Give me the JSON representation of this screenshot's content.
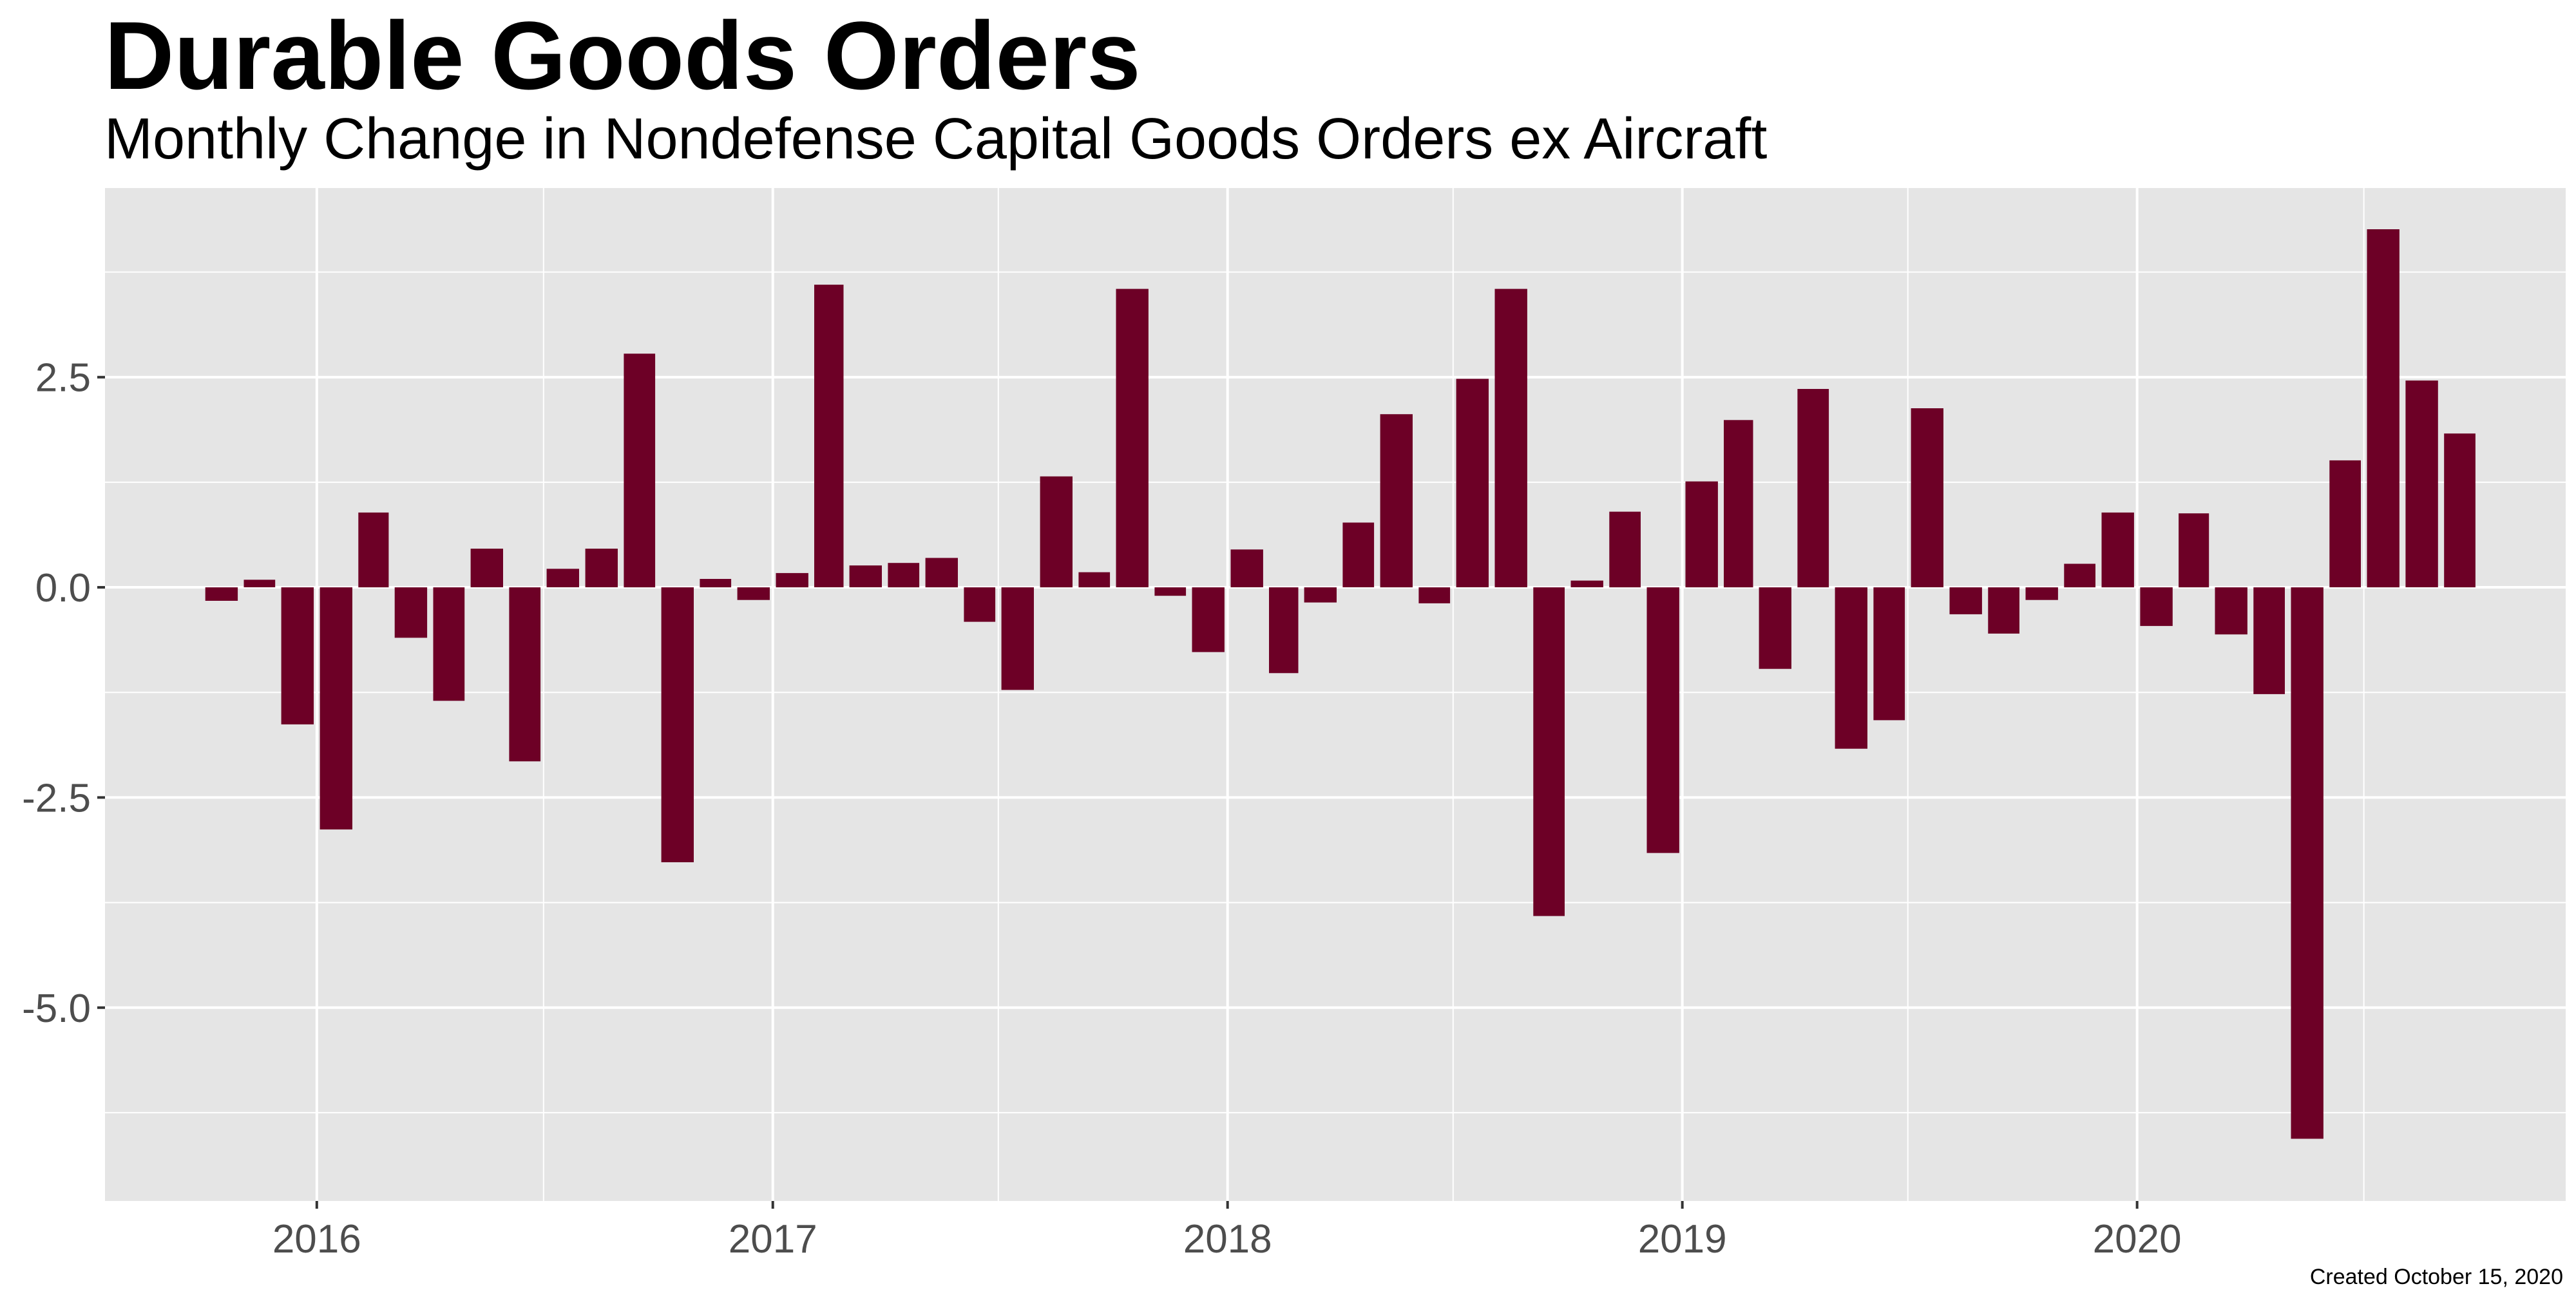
{
  "chart_data": {
    "type": "bar",
    "title": "Durable Goods Orders",
    "subtitle": "Monthly Change in Nondefense Capital Goods Orders ex Aircraft",
    "caption": "Created October 15, 2020",
    "xlabel": "",
    "ylabel": "",
    "ylim": [
      -7.3,
      4.75
    ],
    "y_ticks": [
      {
        "value": 2.5,
        "label": "2.5"
      },
      {
        "value": 0.0,
        "label": "0.0"
      },
      {
        "value": -2.5,
        "label": "-2.5"
      },
      {
        "value": -5.0,
        "label": "-5.0"
      }
    ],
    "x_ticks": [
      {
        "date": "2016-01-01",
        "label": "2016"
      },
      {
        "date": "2017-01-01",
        "label": "2017"
      },
      {
        "date": "2018-01-01",
        "label": "2018"
      },
      {
        "date": "2019-01-01",
        "label": "2019"
      },
      {
        "date": "2020-01-01",
        "label": "2020"
      }
    ],
    "x_range": [
      "2015-07-15",
      "2020-12-10"
    ],
    "bar_color": "#6d0026",
    "panel_color": "#e5e5e5",
    "grid": true,
    "legend": "none",
    "series": [
      {
        "values": [
          {
            "date": "2015-10",
            "value": -0.16
          },
          {
            "date": "2015-11",
            "value": 0.09
          },
          {
            "date": "2015-12",
            "value": -1.63
          },
          {
            "date": "2016-01",
            "value": -2.88
          },
          {
            "date": "2016-02",
            "value": 0.89
          },
          {
            "date": "2016-03",
            "value": -0.6
          },
          {
            "date": "2016-04",
            "value": -1.35
          },
          {
            "date": "2016-05",
            "value": 0.46
          },
          {
            "date": "2016-06",
            "value": -2.07
          },
          {
            "date": "2016-07",
            "value": 0.22
          },
          {
            "date": "2016-08",
            "value": 0.46
          },
          {
            "date": "2016-09",
            "value": 2.78
          },
          {
            "date": "2016-10",
            "value": -3.27
          },
          {
            "date": "2016-11",
            "value": 0.1
          },
          {
            "date": "2016-12",
            "value": -0.15
          },
          {
            "date": "2017-01",
            "value": 0.17
          },
          {
            "date": "2017-02",
            "value": 3.6
          },
          {
            "date": "2017-03",
            "value": 0.26
          },
          {
            "date": "2017-04",
            "value": 0.29
          },
          {
            "date": "2017-05",
            "value": 0.35
          },
          {
            "date": "2017-06",
            "value": -0.41
          },
          {
            "date": "2017-07",
            "value": -1.22
          },
          {
            "date": "2017-08",
            "value": 1.32
          },
          {
            "date": "2017-09",
            "value": 0.18
          },
          {
            "date": "2017-10",
            "value": 3.55
          },
          {
            "date": "2017-11",
            "value": -0.1
          },
          {
            "date": "2017-12",
            "value": -0.77
          },
          {
            "date": "2018-01",
            "value": 0.45
          },
          {
            "date": "2018-02",
            "value": -1.02
          },
          {
            "date": "2018-03",
            "value": -0.18
          },
          {
            "date": "2018-04",
            "value": 0.77
          },
          {
            "date": "2018-05",
            "value": 2.06
          },
          {
            "date": "2018-06",
            "value": -0.19
          },
          {
            "date": "2018-07",
            "value": 2.48
          },
          {
            "date": "2018-08",
            "value": 3.55
          },
          {
            "date": "2018-09",
            "value": -3.91
          },
          {
            "date": "2018-10",
            "value": 0.08
          },
          {
            "date": "2018-11",
            "value": 0.9
          },
          {
            "date": "2018-12",
            "value": -3.16
          },
          {
            "date": "2019-01",
            "value": 1.26
          },
          {
            "date": "2019-02",
            "value": 1.99
          },
          {
            "date": "2019-03",
            "value": -0.97
          },
          {
            "date": "2019-04",
            "value": 2.36
          },
          {
            "date": "2019-05",
            "value": -1.92
          },
          {
            "date": "2019-06",
            "value": -1.58
          },
          {
            "date": "2019-07",
            "value": 2.13
          },
          {
            "date": "2019-08",
            "value": -0.32
          },
          {
            "date": "2019-09",
            "value": -0.55
          },
          {
            "date": "2019-10",
            "value": -0.15
          },
          {
            "date": "2019-11",
            "value": 0.28
          },
          {
            "date": "2019-12",
            "value": 0.89
          },
          {
            "date": "2020-01",
            "value": -0.46
          },
          {
            "date": "2020-02",
            "value": 0.88
          },
          {
            "date": "2020-03",
            "value": -0.56
          },
          {
            "date": "2020-04",
            "value": -1.27
          },
          {
            "date": "2020-05",
            "value": -6.56
          },
          {
            "date": "2020-06",
            "value": 1.51
          },
          {
            "date": "2020-07",
            "value": 4.26
          },
          {
            "date": "2020-08",
            "value": 2.46
          },
          {
            "date": "2020-09",
            "value": 1.83
          }
        ]
      }
    ]
  }
}
